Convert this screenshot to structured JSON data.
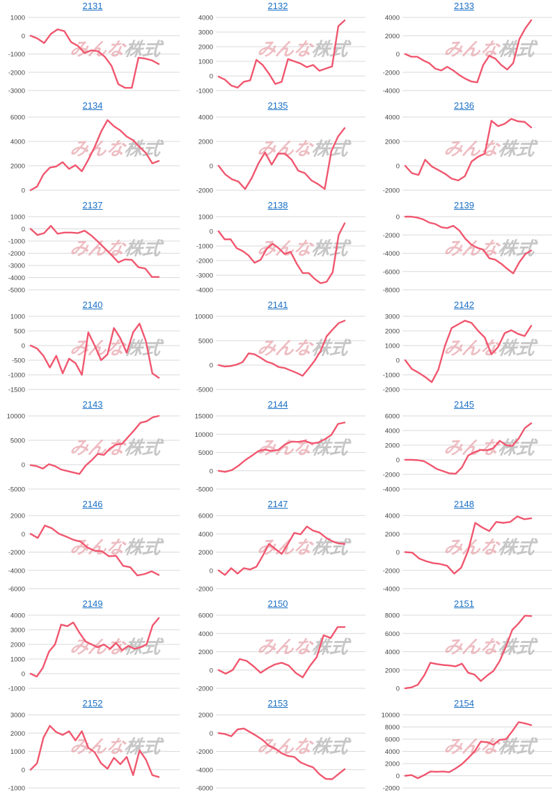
{
  "watermark": {
    "part1": "みんな",
    "part2": "株式",
    "color_pink": "#e8a7ae",
    "color_gray": "#b9b9b9"
  },
  "colors": {
    "line": "#f0566e",
    "title": "#1a6fc4",
    "grid": "#d9d9d9"
  },
  "chart_data": [
    {
      "type": "line",
      "title": "2131",
      "ylim": [
        -3000,
        1000
      ],
      "yticks": [
        1000,
        0,
        -1000,
        -2000,
        -3000
      ],
      "values": [
        0,
        -150,
        -400,
        100,
        350,
        250,
        -350,
        -550,
        -950,
        -800,
        -850,
        -1150,
        -1650,
        -2650,
        -2850,
        -2850,
        -1200,
        -1250,
        -1350,
        -1550
      ]
    },
    {
      "type": "line",
      "title": "2132",
      "ylim": [
        -1000,
        4000
      ],
      "yticks": [
        4000,
        3000,
        2000,
        1000,
        0,
        -1000
      ],
      "values": [
        -50,
        -250,
        -650,
        -800,
        -400,
        -300,
        1100,
        750,
        150,
        -550,
        -400,
        1150,
        1000,
        850,
        600,
        750,
        350,
        500,
        650,
        3400,
        3800
      ]
    },
    {
      "type": "line",
      "title": "2133",
      "ylim": [
        -4000,
        4000
      ],
      "yticks": [
        4000,
        2000,
        0,
        -2000,
        -4000
      ],
      "values": [
        0,
        -300,
        -300,
        -700,
        -1000,
        -1600,
        -1800,
        -1400,
        -1800,
        -2300,
        -2700,
        -3000,
        -3100,
        -1200,
        -200,
        -500,
        -1200,
        -1700,
        -1000,
        1600,
        2800,
        3700
      ]
    },
    {
      "type": "line",
      "title": "2134",
      "ylim": [
        0,
        6000
      ],
      "yticks": [
        6000,
        4000,
        2000,
        0
      ],
      "values": [
        0,
        300,
        1300,
        1850,
        1950,
        2300,
        1750,
        2050,
        1550,
        2500,
        3550,
        4800,
        5750,
        5250,
        4900,
        4400,
        4100,
        3550,
        3050,
        2200,
        2400
      ]
    },
    {
      "type": "line",
      "title": "2135",
      "ylim": [
        -2000,
        4000
      ],
      "yticks": [
        4000,
        2000,
        0,
        -2000
      ],
      "values": [
        0,
        -700,
        -1100,
        -1300,
        -1900,
        -1000,
        200,
        1100,
        100,
        1000,
        1000,
        500,
        -400,
        -600,
        -1200,
        -1500,
        -1900,
        1200,
        2400,
        3100
      ]
    },
    {
      "type": "line",
      "title": "2136",
      "ylim": [
        -2000,
        4000
      ],
      "yticks": [
        4000,
        2000,
        0,
        -2000
      ],
      "values": [
        0,
        -600,
        -750,
        500,
        -50,
        -350,
        -650,
        -1050,
        -1200,
        -850,
        350,
        750,
        1000,
        3700,
        3250,
        3450,
        3850,
        3650,
        3600,
        3150
      ]
    },
    {
      "type": "line",
      "title": "2137",
      "ylim": [
        -5000,
        1000
      ],
      "yticks": [
        1000,
        0,
        -1000,
        -2000,
        -3000,
        -4000,
        -5000
      ],
      "values": [
        0,
        -500,
        -350,
        250,
        -400,
        -300,
        -300,
        -350,
        -150,
        -550,
        -1050,
        -1600,
        -2150,
        -2750,
        -2500,
        -2550,
        -3150,
        -3250,
        -3950,
        -3950
      ]
    },
    {
      "type": "line",
      "title": "2138",
      "ylim": [
        -4000,
        1000
      ],
      "yticks": [
        1000,
        0,
        -1000,
        -2000,
        -3000,
        -4000
      ],
      "values": [
        0,
        -550,
        -550,
        -1150,
        -1350,
        -1650,
        -2150,
        -1950,
        -1200,
        -850,
        -1150,
        -1550,
        -1400,
        -2200,
        -2850,
        -2850,
        -3250,
        -3550,
        -3450,
        -2800,
        -250,
        550
      ]
    },
    {
      "type": "line",
      "title": "2139",
      "ylim": [
        -8000,
        0
      ],
      "yticks": [
        0,
        -2000,
        -4000,
        -6000,
        -8000
      ],
      "values": [
        0,
        0,
        -100,
        -300,
        -650,
        -800,
        -1150,
        -1250,
        -1000,
        -1500,
        -2400,
        -3050,
        -3400,
        -3600,
        -4550,
        -4700,
        -5150,
        -5700,
        -6200,
        -5000,
        -4100,
        -3700
      ]
    },
    {
      "type": "line",
      "title": "2140",
      "ylim": [
        -1500,
        1000
      ],
      "yticks": [
        1000,
        500,
        0,
        -500,
        -1000,
        -1500
      ],
      "values": [
        0,
        -100,
        -350,
        -750,
        -350,
        -950,
        -450,
        -600,
        -1000,
        450,
        0,
        -500,
        -300,
        600,
        250,
        -250,
        450,
        750,
        150,
        -950,
        -1100
      ]
    },
    {
      "type": "line",
      "title": "2141",
      "ylim": [
        -5000,
        10000
      ],
      "yticks": [
        10000,
        5000,
        0,
        -5000
      ],
      "values": [
        0,
        -300,
        -200,
        100,
        600,
        2400,
        2200,
        1500,
        700,
        300,
        -400,
        -600,
        -1100,
        -1600,
        -2200,
        -700,
        900,
        2900,
        5900,
        7300,
        8600,
        9100
      ]
    },
    {
      "type": "line",
      "title": "2142",
      "ylim": [
        -2000,
        3000
      ],
      "yticks": [
        3000,
        2000,
        1000,
        0,
        -1000,
        -2000
      ],
      "values": [
        0,
        -600,
        -850,
        -1150,
        -1500,
        -650,
        1000,
        2200,
        2450,
        2700,
        2550,
        2000,
        1550,
        400,
        900,
        1850,
        2050,
        1800,
        1650,
        2350
      ]
    },
    {
      "type": "line",
      "title": "2143",
      "ylim": [
        -5000,
        10000
      ],
      "yticks": [
        10000,
        5000,
        0,
        -5000
      ],
      "values": [
        -100,
        -300,
        -800,
        100,
        -300,
        -1000,
        -1300,
        -1600,
        -1900,
        -200,
        900,
        2200,
        2000,
        3300,
        4100,
        4300,
        5700,
        7100,
        8600,
        8900,
        9700,
        10000
      ]
    },
    {
      "type": "line",
      "title": "2144",
      "ylim": [
        -5000,
        15000
      ],
      "yticks": [
        15000,
        10000,
        5000,
        0,
        -5000
      ],
      "values": [
        0,
        -300,
        200,
        1400,
        2900,
        4100,
        5400,
        5800,
        5400,
        5700,
        7200,
        8000,
        7900,
        8200,
        7500,
        7700,
        8600,
        9800,
        12800,
        13200
      ]
    },
    {
      "type": "line",
      "title": "2145",
      "ylim": [
        -4000,
        6000
      ],
      "yticks": [
        6000,
        4000,
        2000,
        0,
        -2000,
        -4000
      ],
      "values": [
        0,
        0,
        -50,
        -200,
        -700,
        -1250,
        -1550,
        -1850,
        -1900,
        -1050,
        600,
        1050,
        1350,
        1300,
        1600,
        2600,
        2000,
        1900,
        2900,
        4350,
        5000
      ]
    },
    {
      "type": "line",
      "title": "2146",
      "ylim": [
        -6000,
        2000
      ],
      "yticks": [
        2000,
        0,
        -2000,
        -4000,
        -6000
      ],
      "values": [
        0,
        -450,
        900,
        600,
        0,
        -300,
        -650,
        -850,
        -1500,
        -1850,
        -1900,
        -2450,
        -2400,
        -3500,
        -3650,
        -4550,
        -4400,
        -4100,
        -4500
      ]
    },
    {
      "type": "line",
      "title": "2147",
      "ylim": [
        -2000,
        6000
      ],
      "yticks": [
        6000,
        4000,
        2000,
        0,
        -2000
      ],
      "values": [
        0,
        -500,
        250,
        -350,
        250,
        100,
        400,
        1600,
        2900,
        2350,
        1800,
        2900,
        4100,
        3950,
        4800,
        4350,
        4150,
        3600,
        3200,
        2950,
        2900
      ]
    },
    {
      "type": "line",
      "title": "2148",
      "ylim": [
        -4000,
        4000
      ],
      "yticks": [
        4000,
        2000,
        0,
        -2000,
        -4000
      ],
      "values": [
        0,
        -50,
        -700,
        -1000,
        -1200,
        -1300,
        -1500,
        -2350,
        -1700,
        200,
        3200,
        2700,
        2300,
        3300,
        3200,
        3300,
        3900,
        3600,
        3700
      ]
    },
    {
      "type": "line",
      "title": "2149",
      "ylim": [
        -1000,
        4000
      ],
      "yticks": [
        4000,
        3000,
        2000,
        1000,
        0,
        -1000
      ],
      "values": [
        0,
        -200,
        400,
        1500,
        2000,
        3350,
        3250,
        3500,
        2800,
        2200,
        2000,
        1800,
        2000,
        1700,
        2100,
        1600,
        1900,
        1700,
        1800,
        2000,
        3300,
        3800
      ]
    },
    {
      "type": "line",
      "title": "2150",
      "ylim": [
        -2000,
        6000
      ],
      "yticks": [
        6000,
        4000,
        2000,
        0,
        -2000
      ],
      "values": [
        0,
        -400,
        0,
        1200,
        1000,
        400,
        -300,
        200,
        600,
        800,
        500,
        -300,
        -800,
        400,
        1400,
        3800,
        3500,
        4700,
        4700
      ]
    },
    {
      "type": "line",
      "title": "2151",
      "ylim": [
        0,
        8000
      ],
      "yticks": [
        8000,
        6000,
        4000,
        2000,
        0
      ],
      "values": [
        0,
        100,
        400,
        1400,
        2800,
        2650,
        2550,
        2500,
        2400,
        2700,
        1700,
        1500,
        800,
        1400,
        1900,
        3000,
        4600,
        6400,
        7100,
        7950,
        7900
      ]
    },
    {
      "type": "line",
      "title": "2152",
      "ylim": [
        -1000,
        3000
      ],
      "yticks": [
        3000,
        2000,
        1000,
        0,
        -1000
      ],
      "values": [
        0,
        350,
        1750,
        2400,
        2050,
        1900,
        2100,
        1600,
        2100,
        1200,
        950,
        350,
        50,
        650,
        300,
        700,
        -300,
        1050,
        550,
        -300,
        -400
      ]
    },
    {
      "type": "line",
      "title": "2153",
      "ylim": [
        -6000,
        2000
      ],
      "yticks": [
        2000,
        0,
        -2000,
        -4000,
        -6000
      ],
      "values": [
        0,
        -100,
        -350,
        400,
        500,
        100,
        -300,
        -750,
        -1400,
        -1700,
        -2200,
        -2500,
        -2600,
        -3200,
        -3500,
        -3750,
        -4500,
        -5000,
        -5050,
        -4500,
        -3950
      ]
    },
    {
      "type": "line",
      "title": "2154",
      "ylim": [
        -2000,
        10000
      ],
      "yticks": [
        10000,
        8000,
        6000,
        4000,
        2000,
        0,
        -2000
      ],
      "values": [
        0,
        100,
        -400,
        100,
        700,
        650,
        700,
        600,
        1200,
        1900,
        2900,
        4000,
        5600,
        5500,
        5100,
        5900,
        6000,
        7300,
        8800,
        8600,
        8300
      ]
    }
  ]
}
